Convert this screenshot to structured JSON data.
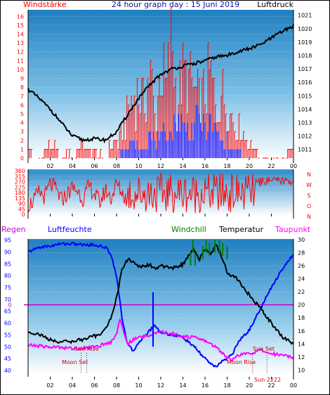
{
  "header": {
    "left": "Windstärke",
    "center": "24 hour graph day : 15 Juni 2019",
    "right": "Luftdruck"
  },
  "labels": {
    "regen": "Regen",
    "luftfeuchte": "Luftfeuchte",
    "windchill": "Windchill",
    "temperatur": "Temperatur",
    "taupunkt": "Taupunkt",
    "sun_rise": "Sun Rise",
    "sun_set": "Sun Set",
    "moon_set": "Moon Set",
    "moon_rise": "Moon Rise",
    "sun_extra": "Sun 2222"
  },
  "colors": {
    "wind_gust": "#ff0000",
    "wind_avg": "#0000ff",
    "pressure": "#000000",
    "direction": "#ff0000",
    "humidity": "#0000ff",
    "temperature": "#000000",
    "dewpoint": "#ff00ff",
    "windchill": "#008000",
    "rain_line": "#cc00cc",
    "grad_top": "#1f83c2",
    "grad_bottom": "#ffffff"
  },
  "chart_data": [
    {
      "type": "bar",
      "title": "24 hour graph day : 15 Juni 2019",
      "x_ticks": [
        "02",
        "04",
        "06",
        "08",
        "10",
        "12",
        "14",
        "16",
        "18",
        "20",
        "22",
        "00"
      ],
      "x_range_hours": [
        0,
        24
      ],
      "left_axis": {
        "label": "Windstärke",
        "ticks": [
          0,
          1,
          2,
          3,
          4,
          5,
          6,
          7,
          8,
          9,
          10,
          11,
          12,
          13,
          14,
          15,
          16
        ],
        "range": [
          0,
          16.5
        ]
      },
      "right_axis": {
        "label": "Luftdruck",
        "ticks": [
          1011,
          1012,
          1013,
          1014,
          1015,
          1016,
          1017,
          1018,
          1019,
          1020,
          1021
        ],
        "range": [
          1010.2,
          1021.4
        ]
      },
      "series": [
        {
          "name": "Windstärke",
          "axis": "left",
          "kind": "gust",
          "x": [
            0,
            1,
            2,
            3,
            3.5,
            4,
            5,
            5.5,
            6,
            7,
            7.5,
            8,
            8.5,
            9,
            9.5,
            10,
            10.5,
            11,
            11.5,
            12,
            12.5,
            13,
            13.5,
            14,
            14.5,
            15,
            15.5,
            16,
            16.5,
            17,
            17.5,
            18,
            18.5,
            19,
            19.5,
            20,
            21,
            22,
            23,
            24
          ],
          "values": [
            1,
            0,
            2,
            0,
            1,
            0,
            2,
            1,
            1,
            0,
            2,
            2,
            3,
            6,
            8,
            9,
            7,
            12,
            5,
            12,
            9,
            16,
            7,
            11,
            10,
            9,
            7,
            9,
            11,
            6,
            9,
            7,
            5,
            4,
            3,
            2,
            0,
            0,
            0,
            2
          ]
        },
        {
          "name": "Windstärke",
          "axis": "left",
          "kind": "average",
          "x": [
            0,
            2,
            4,
            6,
            8,
            8.5,
            9,
            9.5,
            10,
            10.5,
            11,
            11.5,
            12,
            12.5,
            13,
            13.5,
            14,
            14.5,
            15,
            15.5,
            16,
            16.5,
            17,
            17.5,
            18,
            18.5,
            19,
            19.5,
            20,
            24
          ],
          "values": [
            0,
            0,
            0,
            0,
            0,
            1,
            1,
            2,
            2,
            1,
            3,
            2,
            2,
            4,
            3,
            5,
            4,
            3,
            4,
            5,
            4,
            4,
            3,
            2,
            2,
            1,
            1,
            0,
            0,
            0
          ]
        },
        {
          "name": "Luftdruck",
          "axis": "right",
          "x": [
            0,
            1,
            2,
            3,
            4,
            5,
            6,
            7,
            8,
            9,
            10,
            11,
            12,
            13,
            14,
            15,
            16,
            17,
            18,
            19,
            20,
            21,
            22,
            23,
            24
          ],
          "values": [
            1015.5,
            1014.8,
            1014.0,
            1013.0,
            1012.0,
            1011.7,
            1011.8,
            1011.7,
            1012.3,
            1013.6,
            1014.8,
            1015.8,
            1016.6,
            1017.0,
            1017.2,
            1017.4,
            1017.6,
            1017.9,
            1018.0,
            1018.3,
            1018.5,
            1018.8,
            1019.3,
            1019.8,
            1020.2
          ]
        }
      ]
    },
    {
      "type": "line",
      "x_range_hours": [
        0,
        24
      ],
      "left_axis": {
        "ticks": [
          0,
          45,
          90,
          135,
          180,
          225,
          270,
          315,
          360
        ],
        "range": [
          0,
          360
        ]
      },
      "right_axis": {
        "ticks": [
          "N",
          "W",
          "S",
          "O",
          "N"
        ]
      },
      "series": [
        {
          "name": "Windrichtung",
          "x": [
            0,
            0.5,
            1,
            1.5,
            2,
            2.5,
            3,
            3.5,
            4,
            4.5,
            5,
            5.5,
            6,
            6.5,
            7,
            7.5,
            8,
            8.5,
            9,
            9.5,
            10,
            10.5,
            11,
            11.5,
            12,
            12.5,
            13,
            13.5,
            14,
            14.5,
            15,
            15.5,
            16,
            16.5,
            17,
            17.5,
            18,
            18.5,
            19,
            19.5,
            20,
            20.5,
            21,
            21.5,
            22,
            22.5,
            23,
            23.5,
            24
          ],
          "values": [
            10,
            60,
            190,
            120,
            300,
            230,
            80,
            150,
            250,
            200,
            90,
            270,
            160,
            40,
            220,
            100,
            300,
            180,
            60,
            250,
            120,
            290,
            150,
            30,
            200,
            280,
            70,
            230,
            140,
            310,
            100,
            190,
            260,
            50,
            210,
            130,
            280,
            20,
            240,
            160,
            290,
            300,
            250,
            300,
            260,
            280,
            300,
            270,
            310
          ]
        }
      ]
    },
    {
      "type": "line",
      "x_range_hours": [
        0,
        24
      ],
      "left_axis": {
        "label": "Luftfeuchte",
        "ticks": [
          40,
          45,
          50,
          55,
          60,
          65,
          70,
          75,
          80,
          85,
          90,
          95
        ],
        "range": [
          38.5,
          95.5
        ]
      },
      "right_axis": {
        "label": "Temperatur",
        "ticks": [
          10,
          12,
          14,
          16,
          18,
          20,
          22,
          24,
          26,
          28,
          30
        ],
        "range": [
          9.4,
          30.1
        ]
      },
      "regen_axis": {
        "label": "Regen",
        "ticks": [
          0
        ]
      },
      "markers": [
        {
          "label": "Sun Rise",
          "x": 5.3
        },
        {
          "label": "Moon Set",
          "x": 4.8
        },
        {
          "label": "Sun Set",
          "x": 21.6
        },
        {
          "label": "Moon Rise",
          "x": 20.3
        }
      ],
      "series": [
        {
          "name": "Luftfeuchte",
          "axis": "left",
          "x": [
            0,
            0.5,
            1,
            2,
            3,
            4,
            5,
            6,
            7,
            7.5,
            8,
            8.5,
            9,
            9.5,
            10,
            10.5,
            11,
            11.5,
            12,
            13,
            14,
            15,
            16,
            16.5,
            17,
            17.5,
            18,
            18.5,
            19,
            20,
            21,
            22,
            23,
            24
          ],
          "values": [
            90,
            91,
            92,
            92.5,
            93.5,
            93.5,
            93,
            93,
            92,
            89,
            80,
            62,
            51,
            48,
            52,
            54,
            57,
            59,
            56,
            55,
            54,
            50,
            45,
            43,
            41,
            44,
            45,
            47,
            52,
            57,
            66,
            75,
            83,
            89
          ]
        },
        {
          "name": "Temperatur",
          "axis": "right",
          "x": [
            0,
            1,
            2,
            3,
            4,
            5,
            6,
            6.5,
            7,
            7.5,
            8,
            8.5,
            9,
            9.5,
            10,
            10.5,
            11,
            11.5,
            12,
            13,
            14,
            14.5,
            15,
            15.5,
            16,
            16.5,
            17,
            17.5,
            18,
            19,
            20,
            20.5,
            21,
            22,
            23,
            24
          ],
          "values": [
            15.8,
            15.5,
            14.6,
            14.3,
            14.4,
            14.7,
            15.2,
            15.5,
            16.3,
            18,
            21,
            25.5,
            27,
            26.5,
            26,
            25.8,
            26.2,
            25.4,
            26,
            25.6,
            26.2,
            27.5,
            28.5,
            27,
            28.5,
            27.8,
            29.2,
            27.5,
            25,
            23.8,
            21.5,
            20.5,
            19.5,
            17.2,
            15,
            14
          ]
        },
        {
          "name": "Taupunkt",
          "axis": "right",
          "x": [
            0,
            1,
            2,
            3,
            4,
            5,
            6,
            7,
            7.5,
            8,
            8.3,
            8.6,
            9,
            9.5,
            10,
            11,
            12,
            13,
            14,
            15,
            16,
            17,
            18,
            18.5,
            19,
            20,
            21,
            22,
            23,
            24
          ],
          "values": [
            13.8,
            13.7,
            13.5,
            13.5,
            13.3,
            13.4,
            13.5,
            14,
            14.3,
            15.5,
            18,
            16,
            14,
            14.6,
            15,
            15.4,
            15.8,
            15.6,
            15.2,
            15,
            14.5,
            13.5,
            12,
            11.5,
            12.3,
            12.5,
            13,
            12.5,
            12.3,
            12
          ]
        },
        {
          "name": "Windchill",
          "axis": "right",
          "x": [
            14.7,
            14.9,
            15.1,
            15.8,
            16.1,
            16.4,
            16.9,
            17.3,
            17.6,
            18
          ],
          "values": [
            28,
            30,
            28,
            29,
            30,
            29.5,
            30,
            30,
            29.5,
            29
          ]
        },
        {
          "name": "Regen",
          "axis": "regen",
          "x": [
            0,
            24
          ],
          "values": [
            0,
            0
          ]
        }
      ]
    }
  ]
}
